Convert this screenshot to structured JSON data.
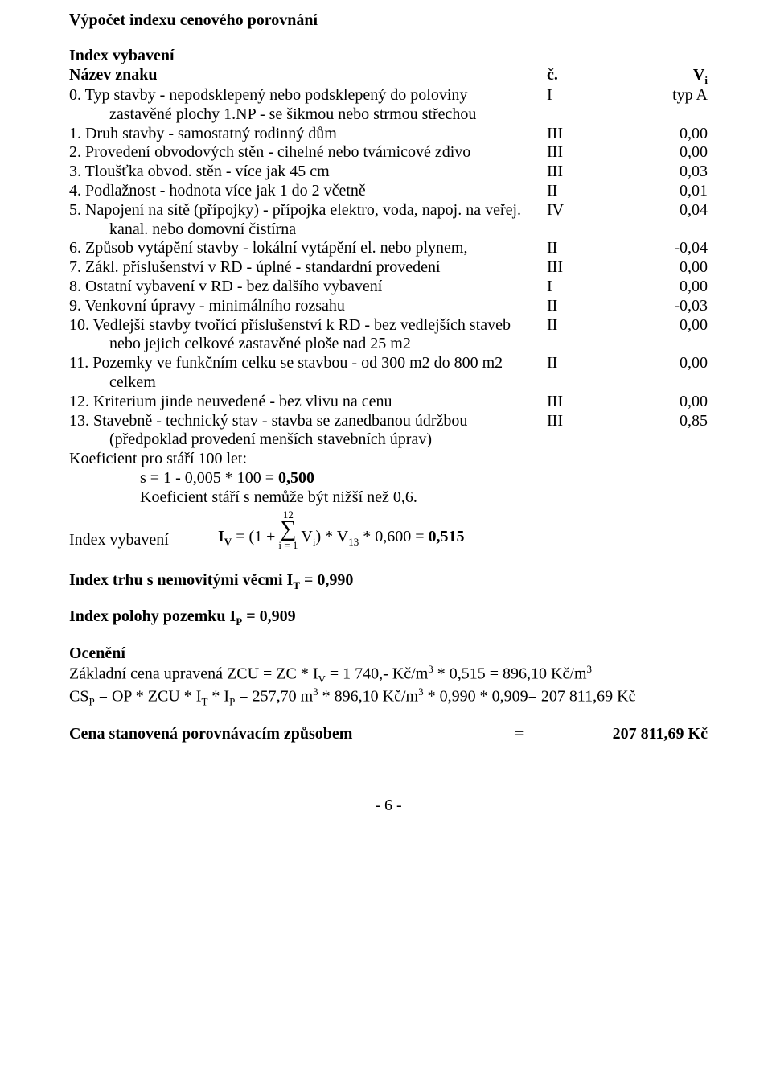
{
  "title": "Výpočet indexu cenového porovnání",
  "section1": "Index vybavení",
  "header": {
    "name": "Název znaku",
    "col1": "č.",
    "col2": "V",
    "col2_sub": "i"
  },
  "rows": [
    {
      "line1": "0. Typ stavby - nepodsklepený nebo podsklepený do poloviny",
      "line2": "zastavěné plochy 1.NP - se šikmou nebo strmou střechou",
      "c1": "I",
      "c2": "typ A"
    },
    {
      "line1": "1. Druh stavby - samostatný rodinný dům",
      "c1": "III",
      "c2": "0,00"
    },
    {
      "line1": "2. Provedení obvodových stěn - cihelné nebo tvárnicové zdivo",
      "c1": "III",
      "c2": "0,00"
    },
    {
      "line1": "3. Tloušťka obvod. stěn - více jak 45 cm",
      "c1": "III",
      "c2": "0,03"
    },
    {
      "line1": "4. Podlažnost - hodnota více jak 1 do 2 včetně",
      "c1": "II",
      "c2": "0,01"
    },
    {
      "line1": "5. Napojení na sítě (přípojky) - přípojka elektro, voda, napoj. na veřej.",
      "line2": "kanal. nebo domovní čistírna",
      "c1": "IV",
      "c2": "0,04"
    },
    {
      "line1": "6. Způsob vytápění stavby - lokální vytápění el. nebo plynem,",
      "c1": "II",
      "c2": "-0,04"
    },
    {
      "line1": "7. Zákl. příslušenství v RD - úplné - standardní provedení",
      "c1": "III",
      "c2": "0,00"
    },
    {
      "line1": "8. Ostatní vybavení v RD - bez dalšího vybavení",
      "c1": "I",
      "c2": "0,00"
    },
    {
      "line1": "9. Venkovní úpravy - minimálního rozsahu",
      "c1": "II",
      "c2": "-0,03"
    },
    {
      "line1": "10. Vedlejší stavby tvořící příslušenství k RD - bez vedlejších staveb",
      "line2": "nebo jejich celkové zastavěné ploše nad 25 m2",
      "c1": "II",
      "c2": "0,00"
    },
    {
      "line1": "11. Pozemky ve funkčním celku se stavbou - od 300 m2 do 800 m2",
      "line2": "celkem",
      "c1": "II",
      "c2": "0,00"
    },
    {
      "line1": "12. Kriterium jinde neuvedené - bez vlivu na cenu",
      "c1": "III",
      "c2": "0,00"
    },
    {
      "line1": "13. Stavebně - technický stav - stavba se zanedbanou údržbou –",
      "line2": "(předpoklad provedení menších stavebních úprav)",
      "c1": "III",
      "c2": "0,85"
    }
  ],
  "koef_label": "Koeficient pro stáří 100 let:",
  "koef_eq": "s = 1 - 0,005 * 100 = ",
  "koef_val": "0,500",
  "koef_note": "Koeficient stáří s nemůže být nižší než 0,6.",
  "formula": {
    "label": "Index vybavení",
    "pre1": "I",
    "pre1_sub": "V",
    "pre2": " = (1 +  ",
    "upper": "12",
    "sigma": "∑",
    "lower": "i = 1",
    "post1": " V",
    "post1_sub": "i",
    "post2": ") * V",
    "post2_sub": "13",
    "post3": " * 0,600 = ",
    "result": "0,515"
  },
  "index_trh": {
    "pre": "Index trhu s nemovitými věcmi I",
    "sub": "T",
    "post": " = 0,990"
  },
  "index_pol": {
    "pre": "Index polohy pozemku I",
    "sub": "P",
    "post": " = 0,909"
  },
  "oceneni": "Ocenění",
  "calc1": {
    "p0": "Základní cena upravená ZCU = ZC * I",
    "s1": "V",
    "p1": " = 1 740,- Kč/m",
    "e1": "3",
    "p2": " * 0,515 = 896,10 Kč/m",
    "e2": "3"
  },
  "calc2": {
    "p0": "CS",
    "s0": "P",
    "p1": " = OP * ZCU * I",
    "s1": "T",
    "p2": " * I",
    "s2": "P",
    "p3": " = 257,70 m",
    "e3": "3",
    "p4": " * 896,10 Kč/m",
    "e4": "3",
    "p5": " * 0,990 * 0,909= 207 811,69 Kč"
  },
  "cena": {
    "label": "Cena stanovená porovnávacím způsobem",
    "eq": "=",
    "val": "207 811,69 Kč"
  },
  "footer": "- 6 -"
}
